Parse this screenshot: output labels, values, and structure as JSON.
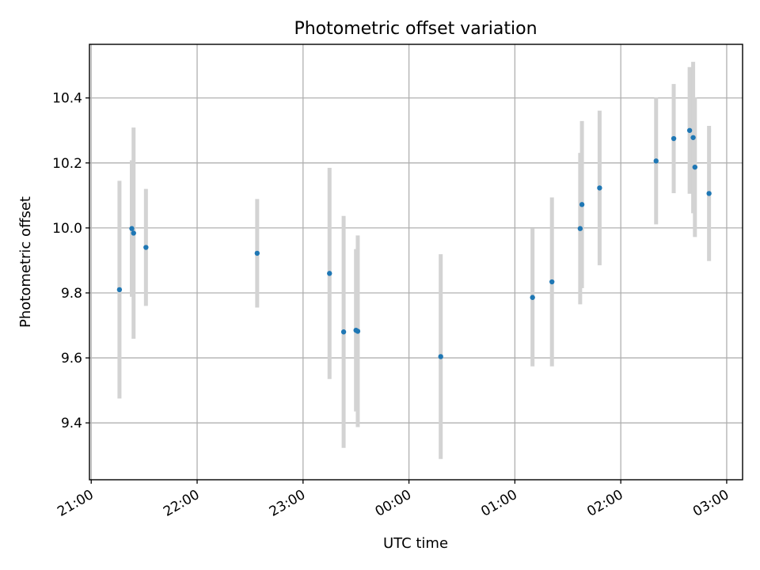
{
  "chart_data": {
    "type": "scatter",
    "title": "Photometric offset variation",
    "xlabel": "UTC time",
    "ylabel": "Photometric offset",
    "x_unit": "UTC time (hh:mm), axis starts 21:00",
    "xlim": [
      "20:59",
      "03:09"
    ],
    "ylim": [
      9.225,
      10.565
    ],
    "grid": true,
    "x_ticks": [
      "21:00",
      "22:00",
      "23:00",
      "00:00",
      "01:00",
      "02:00",
      "03:00"
    ],
    "y_ticks": [
      9.4,
      9.6,
      9.8,
      10.0,
      10.2,
      10.4
    ],
    "y_tick_labels": [
      "9.4",
      "9.6",
      "9.8",
      "10.0",
      "10.2",
      "10.4"
    ],
    "colors": {
      "marker": "#1f77b4",
      "errorbar": "#d3d3d3"
    },
    "series": [
      {
        "points": [
          {
            "x": "21:16",
            "y": 9.81,
            "err": 0.335
          },
          {
            "x": "21:23",
            "y": 9.998,
            "err": 0.21
          },
          {
            "x": "21:24",
            "y": 9.984,
            "err": 0.325
          },
          {
            "x": "21:31",
            "y": 9.94,
            "err": 0.18
          },
          {
            "x": "22:34",
            "y": 9.922,
            "err": 0.167
          },
          {
            "x": "23:15",
            "y": 9.86,
            "err": 0.325
          },
          {
            "x": "23:23",
            "y": 9.68,
            "err": 0.357
          },
          {
            "x": "23:30",
            "y": 9.685,
            "err": 0.25
          },
          {
            "x": "23:31",
            "y": 9.682,
            "err": 0.295
          },
          {
            "x": "00:18",
            "y": 9.604,
            "err": 0.315
          },
          {
            "x": "01:10",
            "y": 9.786,
            "err": 0.212
          },
          {
            "x": "01:21",
            "y": 9.834,
            "err": 0.26
          },
          {
            "x": "01:37",
            "y": 9.998,
            "err": 0.233
          },
          {
            "x": "01:38",
            "y": 10.072,
            "err": 0.257
          },
          {
            "x": "01:48",
            "y": 10.123,
            "err": 0.238
          },
          {
            "x": "02:20",
            "y": 10.206,
            "err": 0.195
          },
          {
            "x": "02:30",
            "y": 10.275,
            "err": 0.168
          },
          {
            "x": "02:39",
            "y": 10.3,
            "err": 0.195
          },
          {
            "x": "02:41",
            "y": 10.278,
            "err": 0.233
          },
          {
            "x": "02:42",
            "y": 10.187,
            "err": 0.215
          },
          {
            "x": "02:50",
            "y": 10.106,
            "err": 0.208
          }
        ]
      }
    ]
  }
}
